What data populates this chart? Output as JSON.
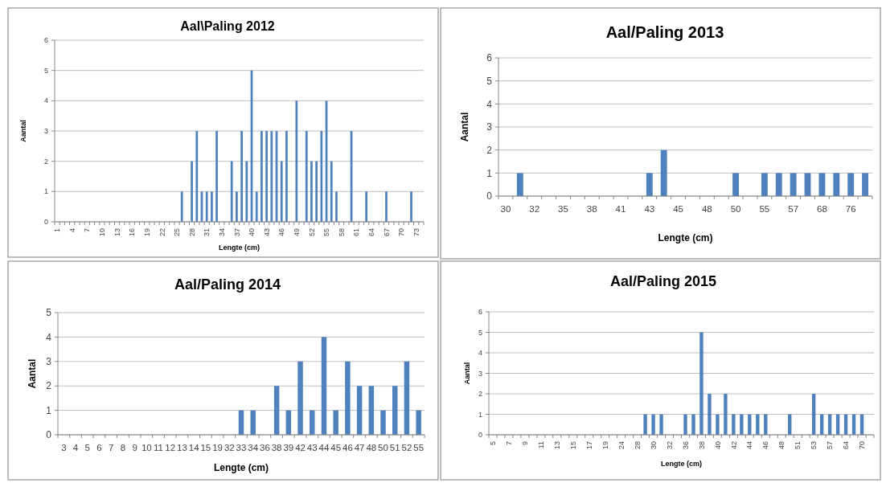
{
  "chart_data": [
    {
      "type": "bar",
      "title": "Aal\\Paling 2012",
      "xlabel": "Lengte (cm)",
      "ylabel": "Aantal",
      "grid": "y",
      "ylim": [
        0,
        6
      ],
      "yticks": [
        0,
        1,
        2,
        3,
        4,
        5,
        6
      ],
      "categories": [
        "1",
        null,
        null,
        "4",
        null,
        null,
        "7",
        null,
        null,
        "10",
        null,
        null,
        "13",
        null,
        null,
        "16",
        null,
        null,
        "19",
        null,
        null,
        "22",
        null,
        null,
        "25",
        null,
        null,
        "28",
        null,
        null,
        "31",
        null,
        null,
        "34",
        null,
        null,
        "37",
        null,
        null,
        "40",
        null,
        null,
        "43",
        null,
        null,
        "46",
        null,
        null,
        "49",
        null,
        null,
        "52",
        null,
        null,
        "55",
        null,
        null,
        "58",
        null,
        null,
        "61",
        null,
        null,
        "64",
        null,
        null,
        "67",
        null,
        null,
        "70",
        null,
        null,
        "73",
        null
      ],
      "series": [
        {
          "color": "#4f81bd",
          "values": [
            0,
            0,
            0,
            0,
            0,
            0,
            0,
            0,
            0,
            0,
            0,
            0,
            0,
            0,
            0,
            0,
            0,
            0,
            0,
            0,
            0,
            0,
            0,
            0,
            0,
            1,
            0,
            2,
            3,
            1,
            1,
            1,
            3,
            0,
            0,
            2,
            1,
            3,
            2,
            5,
            1,
            3,
            3,
            3,
            3,
            2,
            3,
            0,
            4,
            0,
            3,
            2,
            2,
            3,
            4,
            2,
            1,
            0,
            0,
            3,
            0,
            0,
            1,
            0,
            0,
            0,
            1,
            0,
            0,
            0,
            0,
            1,
            0,
            0
          ]
        }
      ]
    },
    {
      "type": "bar",
      "title": "Aal/Paling 2013",
      "xlabel": "Lengte (cm)",
      "ylabel": "Aantal",
      "grid": "y",
      "ylim": [
        0,
        6
      ],
      "yticks": [
        0,
        1,
        2,
        3,
        4,
        5,
        6
      ],
      "categories": [
        "30",
        null,
        "32",
        null,
        "35",
        null,
        "38",
        null,
        "41",
        null,
        "43",
        null,
        "45",
        null,
        "48",
        null,
        "50",
        null,
        "55",
        null,
        "57",
        null,
        "68",
        null,
        "76",
        null
      ],
      "series": [
        {
          "color": "#4f81bd",
          "values": [
            0,
            1,
            0,
            0,
            0,
            0,
            0,
            0,
            0,
            0,
            1,
            2,
            0,
            0,
            0,
            0,
            1,
            0,
            1,
            1,
            1,
            1,
            1,
            1,
            1,
            1
          ]
        }
      ]
    },
    {
      "type": "bar",
      "title": "Aal/Paling 2014",
      "xlabel": "Lengte (cm)",
      "ylabel": "Aantal",
      "grid": "y",
      "ylim": [
        0,
        5
      ],
      "yticks": [
        0,
        1,
        2,
        3,
        4,
        5
      ],
      "categories": [
        "3",
        "4",
        "5",
        "6",
        "7",
        "8",
        "9",
        "10",
        "11",
        "12",
        "13",
        "14",
        "15",
        "19",
        "32",
        "33",
        "34",
        "36",
        "38",
        "39",
        "42",
        "43",
        "44",
        "45",
        "46",
        "47",
        "48",
        "50",
        "51",
        "52",
        "55"
      ],
      "series": [
        {
          "color": "#4f81bd",
          "values": [
            0,
            0,
            0,
            0,
            0,
            0,
            0,
            0,
            0,
            0,
            0,
            0,
            0,
            0,
            0,
            1,
            1,
            0,
            2,
            1,
            3,
            1,
            4,
            1,
            3,
            2,
            2,
            1,
            2,
            3,
            1
          ]
        }
      ]
    },
    {
      "type": "bar",
      "title": "Aal/Paling 2015",
      "xlabel": "Lengte (cm)",
      "ylabel": "Aantal",
      "grid": "y",
      "ylim": [
        0,
        6
      ],
      "yticks": [
        0,
        1,
        2,
        3,
        4,
        5,
        6
      ],
      "categories": [
        "5",
        null,
        "7",
        null,
        "9",
        null,
        "11",
        null,
        "13",
        null,
        "15",
        null,
        "17",
        null,
        "19",
        null,
        "24",
        null,
        "28",
        null,
        "30",
        null,
        "32",
        null,
        "36",
        null,
        "38",
        null,
        "40",
        null,
        "42",
        null,
        "44",
        null,
        "46",
        null,
        "48",
        null,
        "51",
        null,
        "53",
        null,
        "57",
        null,
        "64",
        null,
        "70",
        null
      ],
      "series": [
        {
          "color": "#4f81bd",
          "values": [
            0,
            0,
            0,
            0,
            0,
            0,
            0,
            0,
            0,
            0,
            0,
            0,
            0,
            0,
            0,
            0,
            0,
            0,
            0,
            1,
            1,
            1,
            0,
            0,
            1,
            1,
            5,
            2,
            1,
            2,
            1,
            1,
            1,
            1,
            1,
            0,
            0,
            1,
            0,
            0,
            2,
            1,
            1,
            1,
            1,
            1,
            1,
            0
          ]
        }
      ]
    }
  ]
}
